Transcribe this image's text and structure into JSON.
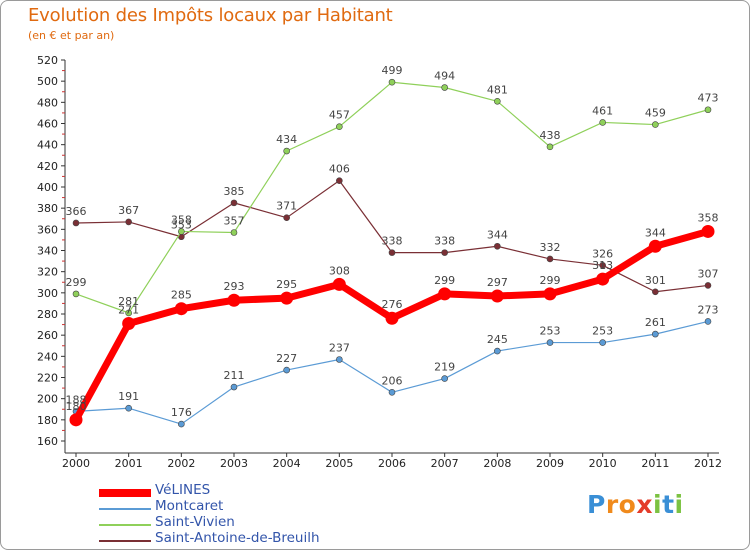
{
  "title": "Evolution des Impôts locaux par Habitant",
  "subtitle": "(en € et par an)",
  "logo_text": "Proxiti",
  "chart_data": {
    "type": "line",
    "title": "Evolution des Impôts locaux par Habitant",
    "subtitle": "(en € et par an)",
    "xlabel": "",
    "ylabel": "",
    "x": [
      "2000",
      "2001",
      "2002",
      "2003",
      "2004",
      "2005",
      "2006",
      "2007",
      "2008",
      "2009",
      "2010",
      "2011",
      "2012"
    ],
    "ylim": [
      160,
      520
    ],
    "yticks": [
      160,
      180,
      200,
      220,
      240,
      260,
      280,
      300,
      320,
      340,
      360,
      380,
      400,
      420,
      440,
      460,
      480,
      500,
      520
    ],
    "grid": false,
    "legend_position": "bottom-left",
    "series": [
      {
        "name": "VéLINES",
        "color": "#ff0000",
        "values": [
          180,
          271,
          285,
          293,
          295,
          308,
          276,
          299,
          297,
          299,
          313,
          344,
          358
        ]
      },
      {
        "name": "Montcaret",
        "color": "#5b9bd5",
        "values": [
          188,
          191,
          176,
          211,
          227,
          237,
          206,
          219,
          245,
          253,
          253,
          261,
          273
        ]
      },
      {
        "name": "Saint-Vivien",
        "color": "#8fd05a",
        "values": [
          299,
          281,
          358,
          357,
          434,
          457,
          499,
          494,
          481,
          438,
          461,
          459,
          473
        ]
      },
      {
        "name": "Saint-Antoine-de-Breuilh",
        "color": "#7a2f35",
        "values": [
          366,
          367,
          353,
          385,
          371,
          406,
          338,
          338,
          344,
          332,
          326,
          301,
          307
        ]
      }
    ]
  }
}
